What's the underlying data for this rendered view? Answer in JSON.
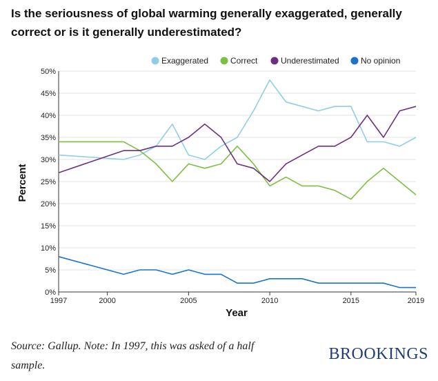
{
  "title": "Is the seriousness of global warming generally exaggerated, generally correct or is it generally underestimated?",
  "footer": {
    "source": "Source: Gallup. Note: In 1997, this was asked of a half sample.",
    "brand": "BROOKINGS"
  },
  "chart_data": {
    "type": "line",
    "xlabel": "Year",
    "ylabel": "Percent",
    "xlim": [
      1997,
      2019
    ],
    "ylim": [
      0,
      50
    ],
    "xticks": [
      1997,
      2000,
      2005,
      2010,
      2015,
      2019
    ],
    "yticks": [
      0,
      5,
      10,
      15,
      20,
      25,
      30,
      35,
      40,
      45,
      50
    ],
    "ytick_suffix": "%",
    "grid": "horizontal",
    "legend_position": "top",
    "x": [
      1997,
      2001,
      2002,
      2003,
      2004,
      2005,
      2006,
      2007,
      2008,
      2009,
      2010,
      2011,
      2012,
      2013,
      2014,
      2015,
      2016,
      2017,
      2018,
      2019
    ],
    "series": [
      {
        "name": "Exaggerated",
        "color": "#8ecfe6",
        "values": [
          31,
          30,
          31,
          33,
          38,
          31,
          30,
          33,
          35,
          41,
          48,
          43,
          42,
          41,
          42,
          42,
          34,
          34,
          33,
          35
        ]
      },
      {
        "name": "Correct",
        "color": "#7cbf45",
        "values": [
          34,
          34,
          32,
          29,
          25,
          29,
          28,
          29,
          33,
          29,
          24,
          26,
          24,
          24,
          23,
          21,
          25,
          28,
          25,
          22
        ]
      },
      {
        "name": "Underestimated",
        "color": "#6b2f82",
        "values": [
          27,
          32,
          32,
          33,
          33,
          35,
          38,
          35,
          29,
          28,
          25,
          29,
          31,
          33,
          33,
          35,
          40,
          35,
          41,
          42
        ]
      },
      {
        "name": "No opinion",
        "color": "#1a73c9",
        "values": [
          8,
          4,
          5,
          5,
          4,
          5,
          4,
          4,
          2,
          2,
          3,
          3,
          3,
          2,
          2,
          2,
          2,
          2,
          1,
          1
        ]
      }
    ]
  }
}
